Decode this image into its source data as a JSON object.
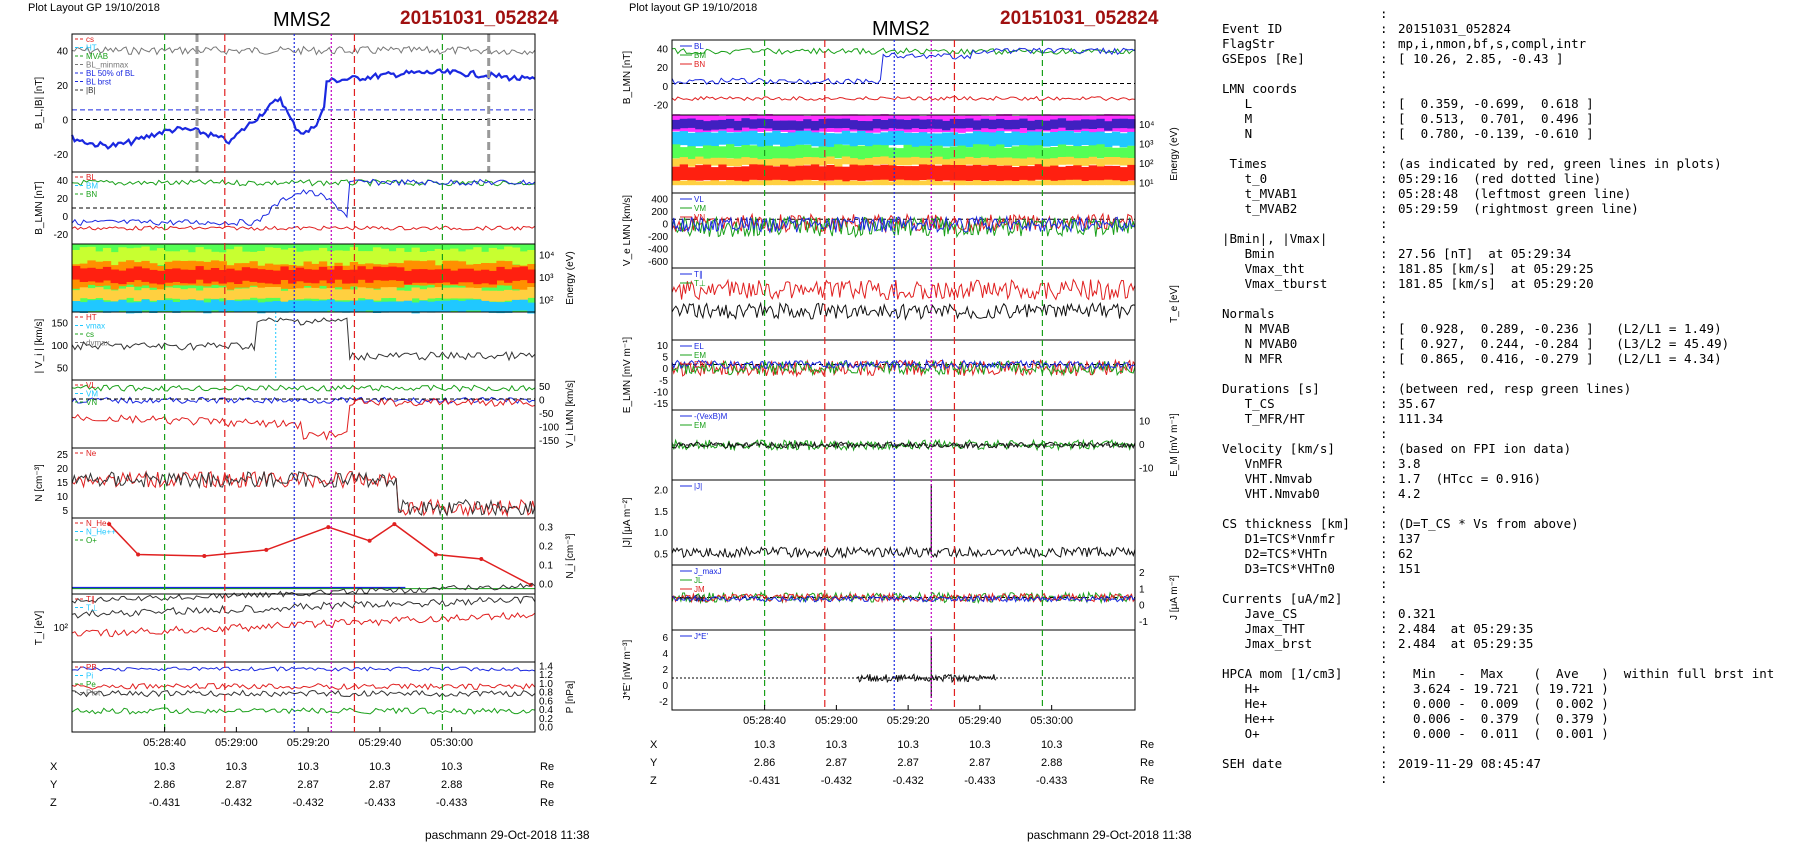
{
  "left": {
    "header": "Plot Layout GP 19/10/2018",
    "title": "MMS2",
    "event": "20151031_052824",
    "footer": "paschmann 29-Oct-2018 11:38",
    "time_labels": [
      "05:28:40",
      "05:29:00",
      "05:29:20",
      "05:29:40",
      "05:30:00"
    ],
    "coord_rows": [
      {
        "label": "X",
        "values": [
          "10.3",
          "10.3",
          "10.3",
          "10.3",
          "10.3"
        ],
        "unit": "Re"
      },
      {
        "label": "Y",
        "values": [
          "2.86",
          "2.87",
          "2.87",
          "2.87",
          "2.88"
        ],
        "unit": "Re"
      },
      {
        "label": "Z",
        "values": [
          "-0.431",
          "-0.432",
          "-0.432",
          "-0.433",
          "-0.433"
        ],
        "unit": "Re"
      }
    ],
    "panels": [
      {
        "ylabel": "B_L,|B| [nT]",
        "ticks": [
          "40",
          "20",
          "0",
          "-20"
        ],
        "legend": [
          "cs",
          "HT",
          "MVAB",
          "BL_minmax",
          "BL 50% of BL",
          "BL brst",
          "|B|"
        ]
      },
      {
        "ylabel": "B_LMN [nT]",
        "ticks": [
          "40",
          "20",
          "0",
          "-20"
        ],
        "legend": [
          "BL",
          "BM",
          "BN"
        ]
      },
      {
        "ylabel": "Energy (eV)",
        "ticks": [
          "10⁴",
          "10³",
          "10²"
        ],
        "legend": []
      },
      {
        "ylabel": "| V_i | [km/s]",
        "ticks": [
          "150",
          "100",
          "50"
        ],
        "legend": [
          "HT",
          "vmax",
          "cs",
          "dvmax"
        ]
      },
      {
        "ylabel": "V_i LMN [km/s]",
        "ticks": [
          "50",
          "0",
          "-50",
          "-100",
          "-150"
        ],
        "legend": [
          "VL",
          "VM",
          "VN"
        ]
      },
      {
        "ylabel": "N [cm⁻³]",
        "ticks": [
          "25",
          "20",
          "15",
          "10",
          "5"
        ],
        "legend": [
          "Ne"
        ]
      },
      {
        "ylabel": "N_i [cm⁻³]",
        "ticks": [
          "0.3",
          "0.2",
          "0.1",
          "0.0"
        ],
        "legend": [
          "N_He+",
          "N_He++",
          "O+"
        ]
      },
      {
        "ylabel": "T_i [eV]",
        "ticks": [
          "10²"
        ],
        "legend": [
          "T∥",
          "T⊥"
        ]
      },
      {
        "ylabel": "P [nPa]",
        "ticks": [
          "1.4",
          "1.2",
          "1.0",
          "0.8",
          "0.6",
          "0.4",
          "0.2",
          "0.0"
        ],
        "legend": [
          "PB",
          "Pi",
          "Pe",
          "Ptot"
        ]
      }
    ]
  },
  "middle": {
    "header": "Plot layout GP 19/10/2018",
    "title": "MMS2",
    "event": "20151031_052824",
    "footer": "paschmann 29-Oct-2018 11:38",
    "time_labels": [
      "05:28:40",
      "05:29:00",
      "05:29:20",
      "05:29:40",
      "05:30:00"
    ],
    "coord_rows": [
      {
        "label": "X",
        "values": [
          "10.3",
          "10.3",
          "10.3",
          "10.3",
          "10.3"
        ],
        "unit": "Re"
      },
      {
        "label": "Y",
        "values": [
          "2.86",
          "2.87",
          "2.87",
          "2.87",
          "2.88"
        ],
        "unit": "Re"
      },
      {
        "label": "Z",
        "values": [
          "-0.431",
          "-0.432",
          "-0.432",
          "-0.433",
          "-0.433"
        ],
        "unit": "Re"
      }
    ],
    "panels": [
      {
        "ylabel": "B_LMN [nT]",
        "ticks": [
          "40",
          "20",
          "0",
          "-20"
        ],
        "legend": [
          "BL",
          "BM",
          "BN"
        ]
      },
      {
        "ylabel": "Energy (eV)",
        "ticks": [
          "10⁴",
          "10³",
          "10²",
          "10¹"
        ],
        "legend": []
      },
      {
        "ylabel": "V_e LMN [km/s]",
        "ticks": [
          "400",
          "200",
          "0",
          "-200",
          "-400",
          "-600"
        ],
        "legend": [
          "VL",
          "VM",
          "VN"
        ]
      },
      {
        "ylabel": "T_e [eV]",
        "ticks": [],
        "legend": [
          "T∥",
          "T⊥"
        ]
      },
      {
        "ylabel": "E_LMN [mV m⁻¹]",
        "ticks": [
          "10",
          "5",
          "0",
          "-5",
          "-10",
          "-15"
        ],
        "legend": [
          "EL",
          "EM",
          "EN"
        ]
      },
      {
        "ylabel": "E_M [mV m⁻¹]",
        "ticks": [
          "10",
          "0",
          "-10"
        ],
        "legend": [
          "-(VexB)M",
          "EM"
        ]
      },
      {
        "ylabel": "|J| [μA m⁻²]",
        "ticks": [
          "2.0",
          "1.5",
          "1.0",
          "0.5"
        ],
        "legend": [
          "|J|"
        ]
      },
      {
        "ylabel": "J [μA m⁻²]",
        "ticks": [
          "2",
          "1",
          "0",
          "-1"
        ],
        "legend": [
          "J_maxJ",
          "JL",
          "JM",
          "JN"
        ]
      },
      {
        "ylabel": "J*E' [nW m⁻³]",
        "ticks": [
          "6",
          "4",
          "2",
          "0",
          "-2"
        ],
        "legend": [
          "J*E'"
        ]
      }
    ]
  },
  "info": {
    "lines": [
      {
        "k": "",
        "v": ""
      },
      {
        "k": "Event ID",
        "v": "20151031_052824"
      },
      {
        "k": "FlagStr",
        "v": "mp,i,nmon,bf,s,compl,intr"
      },
      {
        "k": "GSEpos [Re]",
        "v": "[ 10.26, 2.85, -0.43 ]"
      },
      {
        "k": "",
        "v": ""
      },
      {
        "k": "LMN coords",
        "v": ""
      },
      {
        "k": "   L",
        "v": "[  0.359, -0.699,  0.618 ]"
      },
      {
        "k": "   M",
        "v": "[  0.513,  0.701,  0.496 ]"
      },
      {
        "k": "   N",
        "v": "[  0.780, -0.139, -0.610 ]"
      },
      {
        "k": "",
        "v": ""
      },
      {
        "k": " Times",
        "v": "(as indicated by red, green lines in plots)"
      },
      {
        "k": "   t_0",
        "v": "05:29:16  (red dotted line)"
      },
      {
        "k": "   t_MVAB1",
        "v": "05:28:48  (leftmost green line)"
      },
      {
        "k": "   t_MVAB2",
        "v": "05:29:59  (rightmost green line)"
      },
      {
        "k": "",
        "v": ""
      },
      {
        "k": "|Bmin|, |Vmax|",
        "v": ""
      },
      {
        "k": "   Bmin",
        "v": "27.56 [nT]  at 05:29:34"
      },
      {
        "k": "   Vmax_tht",
        "v": "181.85 [km/s]  at 05:29:25"
      },
      {
        "k": "   Vmax_tburst",
        "v": "181.85 [km/s]  at 05:29:20"
      },
      {
        "k": "",
        "v": ""
      },
      {
        "k": "Normals",
        "v": ""
      },
      {
        "k": "   N MVAB",
        "v": "[  0.928,  0.289, -0.236 ]   (L2/L1 = 1.49)"
      },
      {
        "k": "   N MVAB0",
        "v": "[  0.927,  0.244, -0.284 ]   (L3/L2 = 45.49)"
      },
      {
        "k": "   N MFR",
        "v": "[  0.865,  0.416, -0.279 ]   (L2/L1 = 4.34)"
      },
      {
        "k": "",
        "v": ""
      },
      {
        "k": "Durations [s]",
        "v": "(between red, resp green lines)"
      },
      {
        "k": "   T_CS",
        "v": "35.67"
      },
      {
        "k": "   T_MFR/HT",
        "v": "111.34"
      },
      {
        "k": "",
        "v": ""
      },
      {
        "k": "Velocity [km/s]",
        "v": "(based on FPI ion data)"
      },
      {
        "k": "   VnMFR",
        "v": "3.8"
      },
      {
        "k": "   VHT.Nmvab",
        "v": "1.7  (HTcc = 0.916)"
      },
      {
        "k": "   VHT.Nmvab0",
        "v": "4.2"
      },
      {
        "k": "",
        "v": ""
      },
      {
        "k": "CS thickness [km]",
        "v": "(D=T_CS * Vs from above)"
      },
      {
        "k": "   D1=TCS*Vnmfr",
        "v": "137"
      },
      {
        "k": "   D2=TCS*VHTn",
        "v": "62"
      },
      {
        "k": "   D3=TCS*VHTn0",
        "v": "151"
      },
      {
        "k": "",
        "v": ""
      },
      {
        "k": "Currents [uA/m2]",
        "v": ""
      },
      {
        "k": "   Jave_CS",
        "v": "0.321"
      },
      {
        "k": "   Jmax_THT",
        "v": "2.484  at 05:29:35"
      },
      {
        "k": "   Jmax_brst",
        "v": "2.484  at 05:29:35"
      },
      {
        "k": "",
        "v": ""
      },
      {
        "k": "HPCA mom [1/cm3]",
        "v": "  Min   -  Max    (  Ave   )  within full brst int"
      },
      {
        "k": "   H+",
        "v": "  3.624 - 19.721  ( 19.721 )"
      },
      {
        "k": "   He+",
        "v": "  0.000 -  0.009  (  0.002 )"
      },
      {
        "k": "   He++",
        "v": "  0.006 -  0.379  (  0.379 )"
      },
      {
        "k": "   O+",
        "v": "  0.000 -  0.011  (  0.001 )"
      },
      {
        "k": "",
        "v": ""
      },
      {
        "k": "SEH date",
        "v": "2019-11-29 08:45:47"
      },
      {
        "k": "",
        "v": ""
      }
    ]
  },
  "colors": {
    "red": "#e02020",
    "green": "#1aa01a",
    "blue": "#1a28e0",
    "magenta": "#c000c0",
    "event": "#a01010"
  }
}
